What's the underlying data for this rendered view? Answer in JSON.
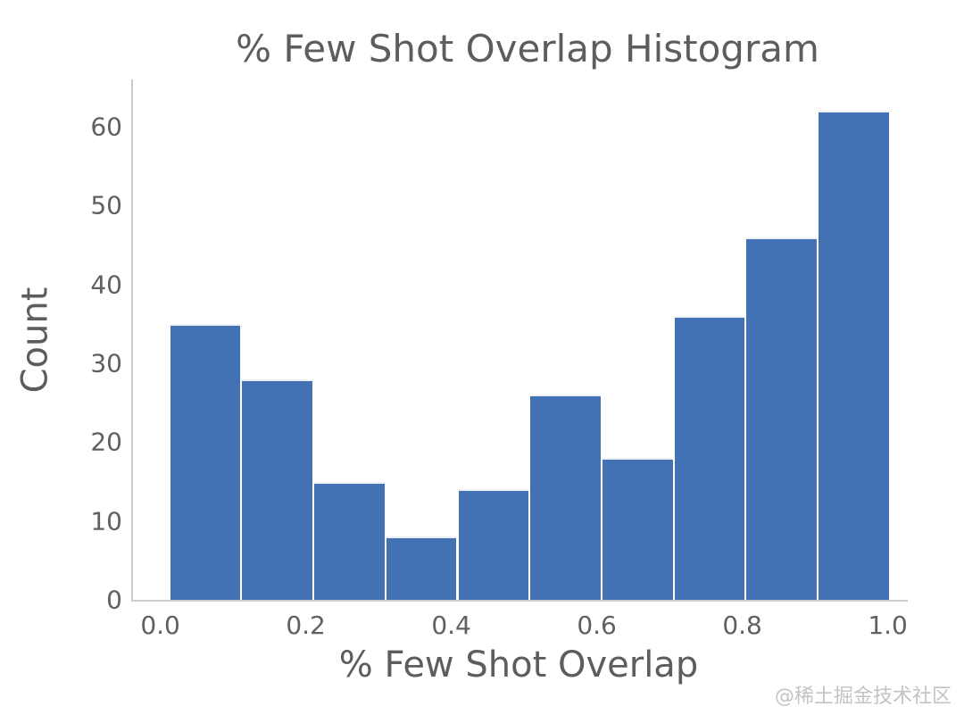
{
  "page": {
    "watermark": "@稀土掘金技术社区"
  },
  "chart_data": {
    "type": "bar",
    "subtype": "histogram",
    "title": "% Few Shot Overlap Histogram",
    "xlabel": "% Few Shot Overlap",
    "ylabel": "Count",
    "bin_edges": [
      0.01,
      0.109,
      0.208,
      0.307,
      0.406,
      0.505,
      0.604,
      0.703,
      0.802,
      0.901,
      1.0
    ],
    "values": [
      35,
      28,
      15,
      8,
      14,
      26,
      18,
      36,
      46,
      62
    ],
    "x_ticks": [
      {
        "value": 0.0,
        "label": "0.0"
      },
      {
        "value": 0.2,
        "label": "0.2"
      },
      {
        "value": 0.4,
        "label": "0.4"
      },
      {
        "value": 0.6,
        "label": "0.6"
      },
      {
        "value": 0.8,
        "label": "0.8"
      },
      {
        "value": 1.0,
        "label": "1.0"
      }
    ],
    "y_ticks": [
      {
        "value": 0,
        "label": "0"
      },
      {
        "value": 10,
        "label": "10"
      },
      {
        "value": 20,
        "label": "20"
      },
      {
        "value": 30,
        "label": "30"
      },
      {
        "value": 40,
        "label": "40"
      },
      {
        "value": 50,
        "label": "50"
      },
      {
        "value": 60,
        "label": "60"
      }
    ],
    "xlim": [
      -0.04,
      1.025
    ],
    "ylim": [
      0,
      66
    ],
    "grid": false,
    "legend_position": "none",
    "bar_color": "#4272b4",
    "bar_edge_color": "#ffffff",
    "text_color": "#5d5d5d",
    "tick_color": "#606060",
    "spine_color": "#cbcbcb"
  }
}
